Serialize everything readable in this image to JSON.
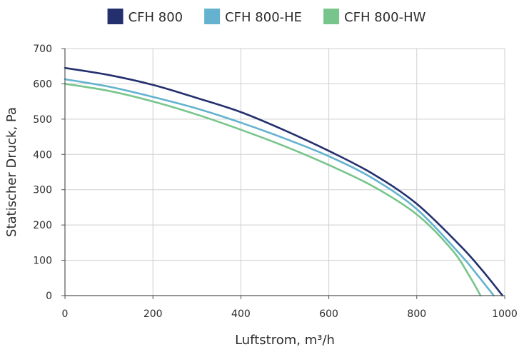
{
  "chart_data": {
    "type": "line",
    "title": "",
    "xlabel": "Luftstrom, m³/h",
    "ylabel": "Statischer Druck, Pa",
    "xlim": [
      0,
      1000
    ],
    "ylim": [
      0,
      700
    ],
    "xticks": [
      0,
      200,
      400,
      600,
      800,
      1000
    ],
    "yticks": [
      0,
      100,
      200,
      300,
      400,
      500,
      600,
      700
    ],
    "x_tick_labels": [
      "0",
      "200",
      "400",
      "600",
      "800",
      "1000"
    ],
    "y_tick_labels": [
      "0",
      "100",
      "200",
      "300",
      "400",
      "500",
      "600",
      "700"
    ],
    "grid": true,
    "legend_position": "top",
    "series": [
      {
        "name": "CFH 800",
        "color": "#24306e",
        "x": [
          0,
          100,
          200,
          300,
          400,
          500,
          600,
          700,
          800,
          900,
          950,
          995
        ],
        "y": [
          645,
          625,
          597,
          560,
          520,
          468,
          410,
          345,
          260,
          140,
          70,
          0
        ]
      },
      {
        "name": "CFH 800-HE",
        "color": "#64b2cf",
        "x": [
          0,
          100,
          200,
          300,
          400,
          500,
          600,
          700,
          800,
          900,
          940,
          975
        ],
        "y": [
          613,
          592,
          563,
          530,
          490,
          445,
          395,
          332,
          245,
          115,
          55,
          0
        ]
      },
      {
        "name": "CFH 800-HW",
        "color": "#78c58b",
        "x": [
          0,
          100,
          200,
          300,
          400,
          500,
          600,
          700,
          800,
          880,
          920,
          945
        ],
        "y": [
          600,
          580,
          550,
          513,
          470,
          423,
          370,
          310,
          230,
          130,
          55,
          0
        ]
      }
    ]
  }
}
